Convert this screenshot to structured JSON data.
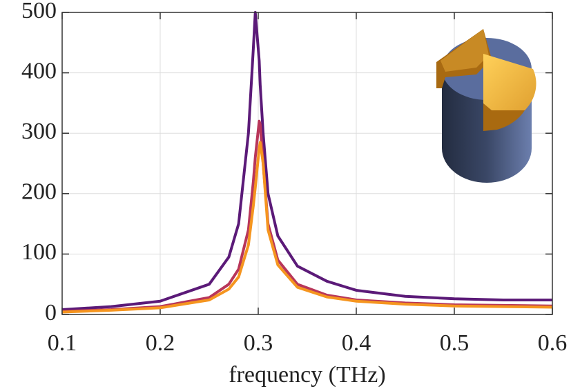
{
  "chart_data": {
    "type": "line",
    "xlabel": "frequency (THz)",
    "x": [
      0.1,
      0.15,
      0.2,
      0.25,
      0.27,
      0.28,
      0.29,
      0.295,
      0.297,
      0.301,
      0.302,
      0.305,
      0.31,
      0.32,
      0.34,
      0.37,
      0.4,
      0.45,
      0.5,
      0.55,
      0.6
    ],
    "series": [
      {
        "color": "#5b1a78",
        "values": [
          8,
          13,
          22,
          50,
          95,
          150,
          300,
          440,
          500,
          420,
          380,
          300,
          200,
          130,
          80,
          55,
          40,
          30,
          26,
          24,
          24
        ]
      },
      {
        "color": "#b8365a",
        "values": [
          5,
          8,
          13,
          28,
          50,
          75,
          140,
          220,
          260,
          320,
          315,
          250,
          150,
          90,
          50,
          32,
          24,
          19,
          16,
          15,
          14
        ]
      },
      {
        "color": "#f5951f",
        "values": [
          4,
          7,
          11,
          24,
          42,
          62,
          115,
          180,
          210,
          275,
          285,
          250,
          140,
          82,
          45,
          29,
          22,
          17,
          14,
          13,
          12
        ]
      }
    ],
    "xlim": [
      0.1,
      0.6
    ],
    "xticks": [
      0.1,
      0.2,
      0.3,
      0.4,
      0.5,
      0.6
    ],
    "ylim": [
      0,
      500
    ],
    "yticks": [
      0,
      100,
      200,
      300,
      400,
      500
    ],
    "grid": true
  }
}
